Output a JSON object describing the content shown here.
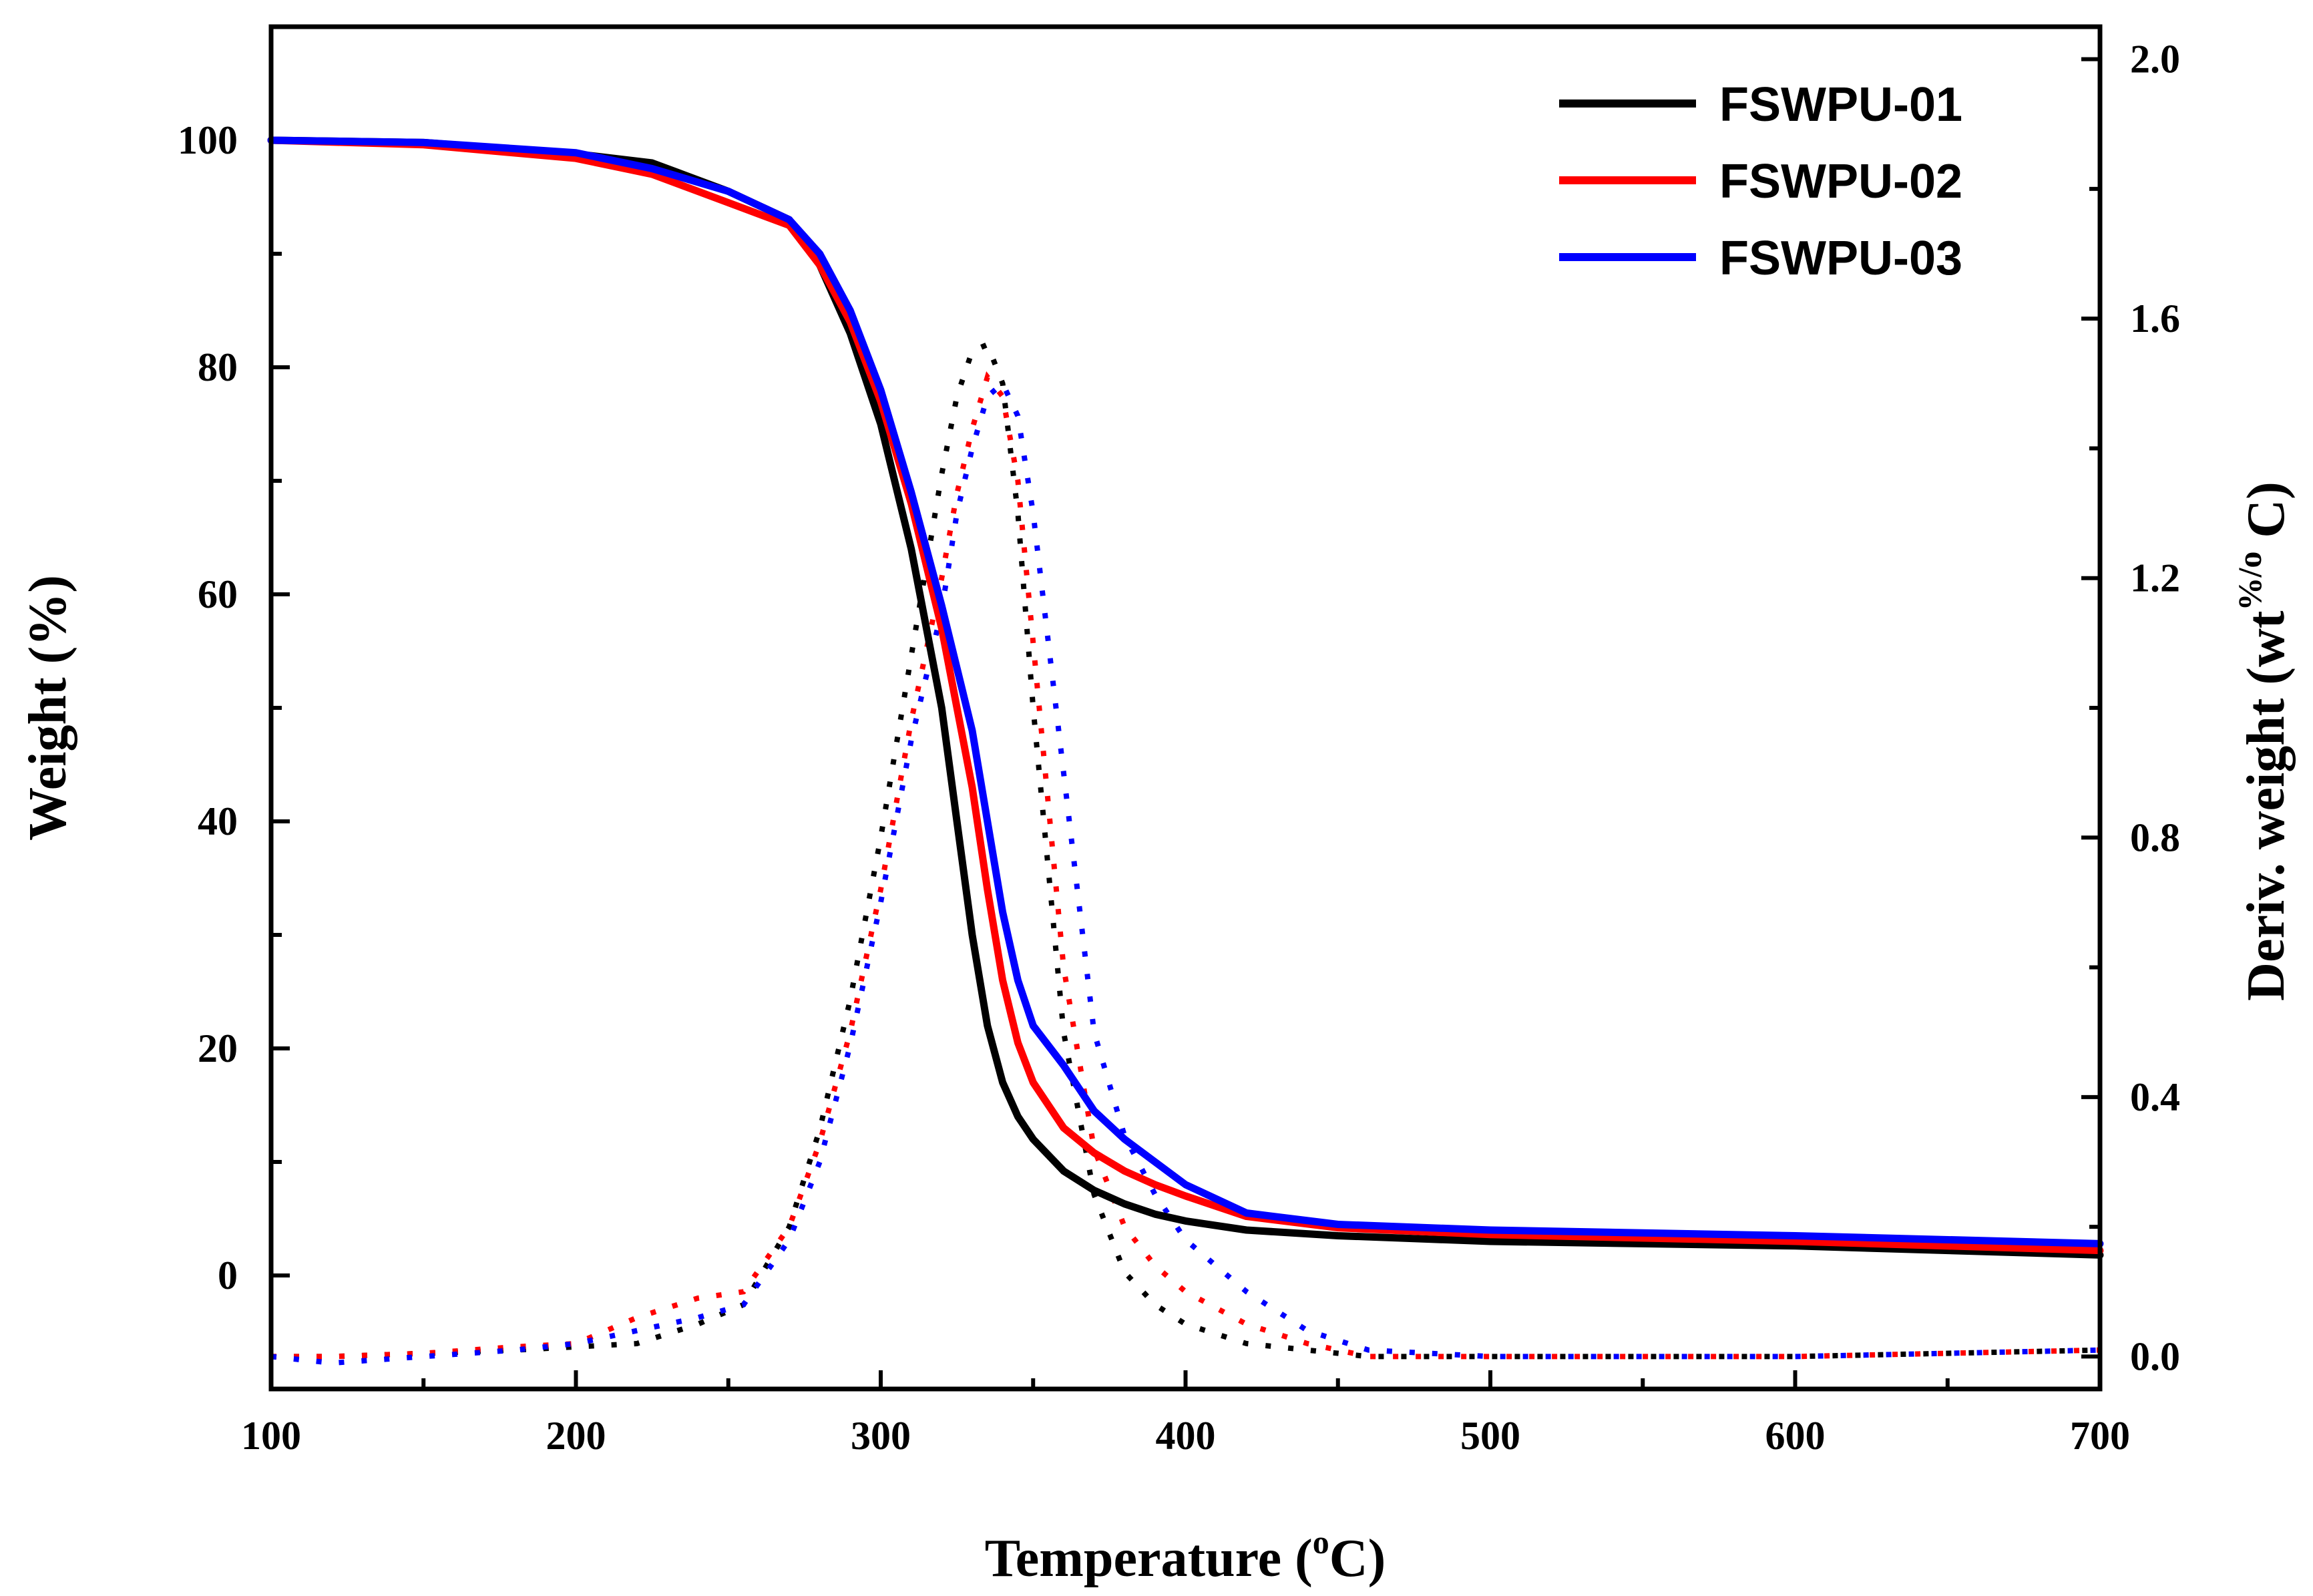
{
  "chart_data": {
    "type": "line",
    "title": "",
    "xlabel": {
      "pre": "Temperature (",
      "sup": "o",
      "post": "C)"
    },
    "ylabel_left": "Weight (%)",
    "ylabel_right": {
      "pre": "Deriv. weight (wt",
      "sup1": "%/",
      "sup2": "o",
      "post": "C)"
    },
    "xlim": [
      100,
      700
    ],
    "ylim_left": [
      -10,
      110
    ],
    "ylim_right": [
      -0.05,
      2.05
    ],
    "xticks": [
      100,
      200,
      300,
      400,
      500,
      600,
      700
    ],
    "yticks_left": [
      0,
      20,
      40,
      60,
      80,
      100
    ],
    "yticks_right": [
      0.0,
      0.4,
      0.8,
      1.2,
      1.6,
      2.0
    ],
    "ytick_labels_right": [
      "0.0",
      "0.4",
      "0.8",
      "1.2",
      "1.6",
      "2.0"
    ],
    "legend_position": "top-right",
    "series": [
      {
        "name": "FSWPU-01",
        "color": "#000000",
        "weight": {
          "x": [
            100,
            150,
            200,
            225,
            250,
            270,
            280,
            290,
            300,
            310,
            320,
            325,
            330,
            335,
            340,
            345,
            350,
            360,
            370,
            380,
            390,
            400,
            420,
            450,
            500,
            600,
            700
          ],
          "y": [
            100,
            99.8,
            98.8,
            98,
            95.5,
            93,
            89,
            83,
            75,
            64,
            50,
            40,
            30,
            22,
            17,
            14,
            12,
            9.2,
            7.5,
            6.3,
            5.4,
            4.8,
            4,
            3.5,
            3,
            2.6,
            1.8
          ]
        },
        "deriv": {
          "x": [
            100,
            120,
            150,
            180,
            200,
            220,
            240,
            255,
            270,
            280,
            290,
            300,
            310,
            315,
            320,
            325,
            330,
            335,
            340,
            345,
            350,
            360,
            370,
            380,
            390,
            400,
            420,
            440,
            460,
            500,
            600,
            700
          ],
          "y": [
            0.0,
            0.0,
            0.005,
            0.01,
            0.015,
            0.02,
            0.05,
            0.08,
            0.2,
            0.35,
            0.55,
            0.8,
            1.08,
            1.22,
            1.36,
            1.48,
            1.55,
            1.56,
            1.5,
            1.3,
            1.0,
            0.5,
            0.25,
            0.13,
            0.08,
            0.05,
            0.02,
            0.01,
            0.0,
            0.0,
            0.0,
            0.01
          ]
        }
      },
      {
        "name": "FSWPU-02",
        "color": "#ff0000",
        "weight": {
          "x": [
            100,
            150,
            200,
            225,
            250,
            270,
            280,
            290,
            300,
            310,
            320,
            330,
            335,
            340,
            345,
            350,
            360,
            370,
            380,
            390,
            400,
            420,
            450,
            500,
            600,
            700
          ],
          "y": [
            100,
            99.6,
            98.4,
            97,
            94.5,
            92.5,
            89,
            84,
            77,
            68,
            57,
            43,
            34,
            26,
            20.5,
            17,
            13,
            10.8,
            9.2,
            8,
            7,
            5.2,
            4.2,
            3.6,
            3,
            2.2
          ]
        },
        "deriv": {
          "x": [
            100,
            120,
            150,
            180,
            200,
            220,
            240,
            255,
            270,
            280,
            290,
            300,
            310,
            320,
            325,
            330,
            335,
            340,
            345,
            350,
            360,
            370,
            380,
            390,
            400,
            420,
            440,
            460,
            500,
            600,
            700
          ],
          "y": [
            0.0,
            0.0,
            0.005,
            0.015,
            0.02,
            0.06,
            0.09,
            0.1,
            0.2,
            0.33,
            0.5,
            0.72,
            0.98,
            1.2,
            1.33,
            1.43,
            1.51,
            1.48,
            1.35,
            1.1,
            0.6,
            0.32,
            0.2,
            0.14,
            0.1,
            0.05,
            0.02,
            0.0,
            0.0,
            0.0,
            0.01
          ]
        }
      },
      {
        "name": "FSWPU-03",
        "color": "#0000ff",
        "weight": {
          "x": [
            100,
            150,
            200,
            225,
            250,
            270,
            280,
            290,
            300,
            310,
            320,
            330,
            335,
            340,
            345,
            350,
            360,
            370,
            380,
            390,
            400,
            420,
            450,
            500,
            600,
            700
          ],
          "y": [
            100,
            99.8,
            98.9,
            97.5,
            95.5,
            93,
            90,
            85,
            78,
            69,
            59,
            48,
            40,
            32,
            26,
            22,
            18.5,
            14.5,
            12,
            10,
            8,
            5.5,
            4.5,
            4,
            3.5,
            2.8
          ]
        },
        "deriv": {
          "x": [
            100,
            120,
            150,
            180,
            200,
            220,
            240,
            255,
            270,
            280,
            290,
            300,
            310,
            320,
            325,
            330,
            335,
            340,
            345,
            350,
            360,
            370,
            380,
            390,
            400,
            420,
            440,
            460,
            500,
            600,
            700
          ],
          "y": [
            0.0,
            -0.01,
            0.0,
            0.01,
            0.02,
            0.04,
            0.06,
            0.08,
            0.18,
            0.3,
            0.48,
            0.7,
            0.95,
            1.15,
            1.3,
            1.4,
            1.48,
            1.5,
            1.45,
            1.3,
            0.9,
            0.5,
            0.34,
            0.25,
            0.18,
            0.1,
            0.04,
            0.01,
            0.0,
            0.0,
            0.01
          ]
        }
      }
    ]
  }
}
